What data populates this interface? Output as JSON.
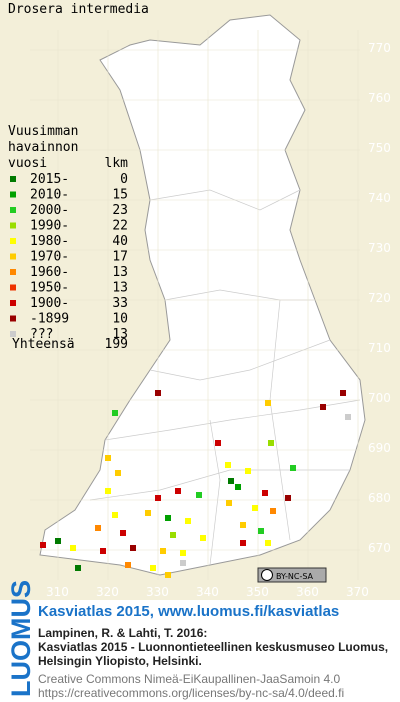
{
  "title": "Drosera intermedia",
  "grid": {
    "y_labels": [
      "770",
      "760",
      "750",
      "740",
      "730",
      "720",
      "710",
      "700",
      "690",
      "680",
      "670"
    ],
    "x_labels": [
      "310",
      "320",
      "330",
      "340",
      "350",
      "360",
      "370"
    ]
  },
  "legend": {
    "heading": [
      "Vuusimman",
      "havainnon"
    ],
    "col_left": "vuosi",
    "col_right": "lkm",
    "items": [
      {
        "label": "2015-",
        "count": 0,
        "color": "#007a00"
      },
      {
        "label": "2010-",
        "count": 15,
        "color": "#00a000"
      },
      {
        "label": "2000-",
        "count": 23,
        "color": "#22cc22"
      },
      {
        "label": "1990-",
        "count": 22,
        "color": "#99dd00"
      },
      {
        "label": "1980-",
        "count": 40,
        "color": "#ffff00"
      },
      {
        "label": "1970-",
        "count": 17,
        "color": "#ffcc00"
      },
      {
        "label": "1960-",
        "count": 13,
        "color": "#ff8800"
      },
      {
        "label": "1950-",
        "count": 13,
        "color": "#ee3300"
      },
      {
        "label": "1900-",
        "count": 33,
        "color": "#cc0000"
      },
      {
        "label": "-1899",
        "count": 10,
        "color": "#990000"
      },
      {
        "label": "???",
        "count": 13,
        "color": "#cccccc"
      }
    ],
    "total_label": "Yhteensä",
    "total": 199
  },
  "license_badge": "BY-NC-SA",
  "footer": {
    "logo": "LUOMUS",
    "headline": "Kasviatlas 2015, www.luomus.fi/kasviatlas",
    "citation": [
      "Lampinen, R. & Lahti, T. 2016:",
      "Kasviatlas 2015 - Luonnontieteellinen keskusmuseo Luomus,",
      "Helsingin Yliopisto, Helsinki."
    ],
    "license": [
      "Creative Commons Nimeä-EiKaupallinen-JaaSamoin 4.0",
      "https://creativecommons.org/licenses/by-nc-sa/4.0/deed.fi"
    ]
  }
}
